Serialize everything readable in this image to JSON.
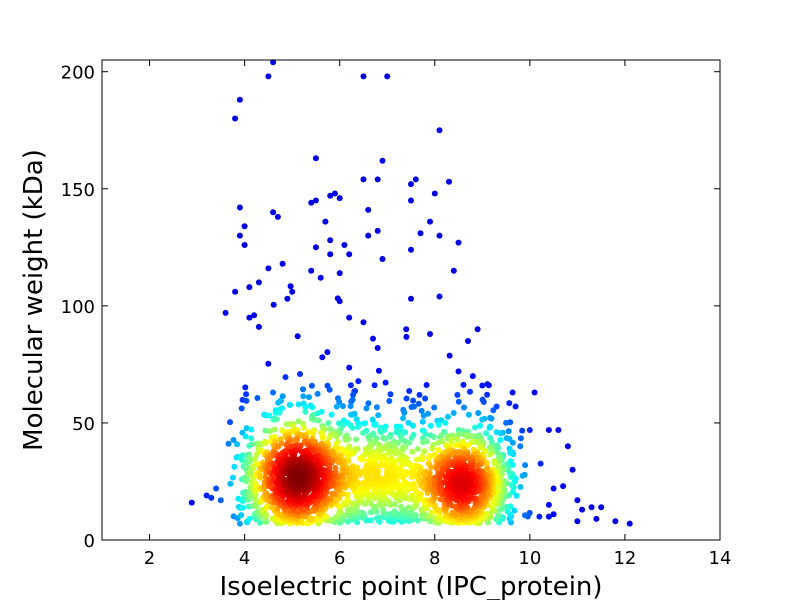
{
  "chart_data": {
    "type": "scatter",
    "title": "",
    "xlabel": "Isoelectric point (IPC_protein)",
    "ylabel": "Molecular weight (kDa)",
    "xlim": [
      1,
      14
    ],
    "ylim": [
      0,
      205
    ],
    "xticks": [
      2,
      4,
      6,
      8,
      10,
      12,
      14
    ],
    "yticks": [
      0,
      50,
      100,
      150,
      200
    ],
    "grid": false,
    "colormap": "jet (point density: blue = sparse, dark red = dense)",
    "colors": {
      "low_density": "#0000cc",
      "mid_density": "#40ffb8",
      "high_density": "#ff2000",
      "peak_density": "#800000"
    },
    "clusters": [
      {
        "center_x": 5.1,
        "center_y": 27,
        "spread_x": 0.55,
        "spread_y": 13,
        "density": "peak"
      },
      {
        "center_x": 8.6,
        "center_y": 24,
        "spread_x": 0.5,
        "spread_y": 12,
        "density": "high"
      },
      {
        "center_x": 6.9,
        "center_y": 28,
        "spread_x": 0.55,
        "spread_y": 12,
        "density": "medium"
      }
    ],
    "sparse_points": [
      [
        4.4,
        205
      ],
      [
        4.5,
        198
      ],
      [
        4.6,
        204
      ],
      [
        6.5,
        198
      ],
      [
        7.0,
        198
      ],
      [
        3.9,
        188
      ],
      [
        3.8,
        180
      ],
      [
        8.1,
        175
      ],
      [
        5.5,
        163
      ],
      [
        6.9,
        162
      ],
      [
        6.5,
        154
      ],
      [
        6.8,
        154
      ],
      [
        7.6,
        154
      ],
      [
        8.3,
        153
      ],
      [
        7.5,
        152
      ],
      [
        8.0,
        148
      ],
      [
        5.9,
        148
      ],
      [
        6.0,
        146
      ],
      [
        5.8,
        147
      ],
      [
        7.5,
        145
      ],
      [
        5.5,
        145
      ],
      [
        5.4,
        144
      ],
      [
        3.9,
        142
      ],
      [
        6.6,
        141
      ],
      [
        4.6,
        140
      ],
      [
        4.7,
        138
      ],
      [
        7.9,
        136
      ],
      [
        5.7,
        136
      ],
      [
        4.0,
        134
      ],
      [
        6.8,
        132
      ],
      [
        7.7,
        131
      ],
      [
        3.9,
        130
      ],
      [
        8.1,
        130
      ],
      [
        6.6,
        130
      ],
      [
        5.8,
        128
      ],
      [
        8.5,
        127
      ],
      [
        6.1,
        126
      ],
      [
        4.0,
        126
      ],
      [
        5.5,
        125
      ],
      [
        7.5,
        124
      ],
      [
        5.8,
        122
      ],
      [
        6.2,
        122
      ],
      [
        6.9,
        120
      ],
      [
        4.8,
        118
      ],
      [
        4.5,
        116
      ],
      [
        5.4,
        115
      ],
      [
        8.4,
        115
      ],
      [
        6.0,
        114
      ],
      [
        5.6,
        112
      ],
      [
        4.3,
        110
      ],
      [
        4.1,
        108
      ],
      [
        5.0,
        106
      ],
      [
        3.8,
        106
      ],
      [
        8.1,
        104
      ],
      [
        4.9,
        103
      ],
      [
        7.5,
        103
      ],
      [
        6.0,
        102
      ],
      [
        10.1,
        63
      ],
      [
        10.8,
        40
      ],
      [
        10.6,
        47
      ],
      [
        10.4,
        47
      ],
      [
        10.9,
        30
      ],
      [
        10.7,
        23
      ],
      [
        10.5,
        22
      ],
      [
        10.4,
        15
      ],
      [
        10.5,
        11
      ],
      [
        10.2,
        10
      ],
      [
        10.4,
        10
      ],
      [
        11.0,
        17
      ],
      [
        11.1,
        13
      ],
      [
        11.0,
        8
      ],
      [
        11.3,
        14
      ],
      [
        11.5,
        14
      ],
      [
        11.4,
        9
      ],
      [
        11.8,
        8
      ],
      [
        12.1,
        7
      ],
      [
        9.7,
        57
      ],
      [
        10.0,
        47
      ],
      [
        3.3,
        18
      ],
      [
        3.4,
        22
      ],
      [
        3.5,
        17
      ],
      [
        3.2,
        19
      ],
      [
        3.7,
        24
      ],
      [
        4.1,
        9
      ],
      [
        3.9,
        7
      ],
      [
        8.9,
        90
      ],
      [
        7.4,
        90
      ],
      [
        6.8,
        82
      ],
      [
        6.7,
        86
      ],
      [
        6.2,
        95
      ],
      [
        6.5,
        93
      ],
      [
        4.1,
        95
      ],
      [
        4.2,
        96
      ],
      [
        3.6,
        97
      ],
      [
        4.3,
        91
      ],
      [
        9.1,
        62
      ],
      [
        9.3,
        57
      ],
      [
        9.5,
        50
      ],
      [
        9.8,
        40
      ],
      [
        9.9,
        32
      ],
      [
        7.9,
        88
      ],
      [
        8.7,
        85
      ],
      [
        9.0,
        66
      ],
      [
        8.8,
        70
      ],
      [
        8.5,
        72
      ]
    ]
  }
}
